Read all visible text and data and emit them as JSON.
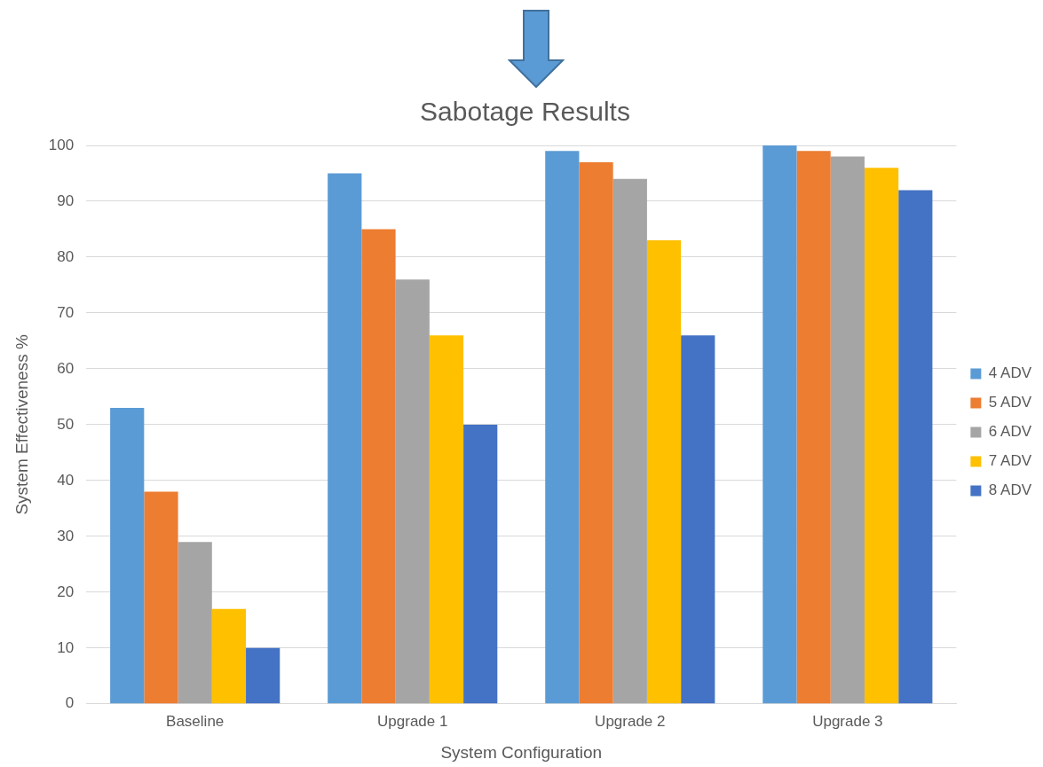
{
  "chart_data": {
    "type": "bar",
    "title": "Sabotage Results",
    "xlabel": "System Configuration",
    "ylabel": "System Effectiveness %",
    "categories": [
      "Baseline",
      "Upgrade 1",
      "Upgrade 2",
      "Upgrade 3"
    ],
    "series": [
      {
        "name": "4 ADV",
        "color": "#5b9bd5",
        "values": [
          53,
          95,
          99,
          100
        ]
      },
      {
        "name": "5 ADV",
        "color": "#ed7d31",
        "values": [
          38,
          85,
          97,
          99
        ]
      },
      {
        "name": "6 ADV",
        "color": "#a5a5a5",
        "values": [
          29,
          76,
          94,
          98
        ]
      },
      {
        "name": "7 ADV",
        "color": "#ffc000",
        "values": [
          17,
          66,
          83,
          96
        ]
      },
      {
        "name": "8 ADV",
        "color": "#4472c4",
        "values": [
          10,
          50,
          66,
          92
        ]
      }
    ],
    "ylim": [
      0,
      100
    ],
    "yticks": [
      0,
      10,
      20,
      30,
      40,
      50,
      60,
      70,
      80,
      90,
      100
    ],
    "grid": "y",
    "legend": "right"
  }
}
